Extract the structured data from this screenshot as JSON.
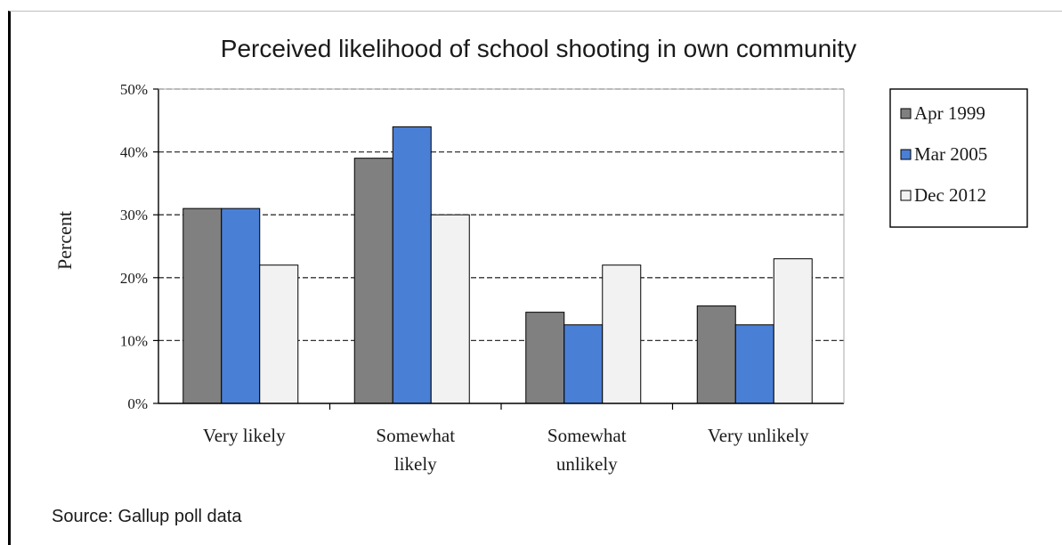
{
  "chart_data": {
    "type": "bar",
    "title": "Perceived likelihood of school shooting in own community",
    "xlabel": "",
    "ylabel": "Percent",
    "categories": [
      [
        "Very likely"
      ],
      [
        "Somewhat",
        "likely"
      ],
      [
        "Somewhat",
        "unlikely"
      ],
      [
        "Very unlikely"
      ]
    ],
    "series": [
      {
        "name": "Apr 1999",
        "color": "#808080",
        "values": [
          31,
          39,
          14.5,
          15.5
        ]
      },
      {
        "name": "Mar 2005",
        "color": "#4a7fd6",
        "values": [
          31,
          44,
          12.5,
          12.5
        ]
      },
      {
        "name": "Dec 2012",
        "color": "#f2f2f2",
        "values": [
          22,
          30,
          22,
          23
        ]
      }
    ],
    "yticks": [
      "0%",
      "10%",
      "20%",
      "30%",
      "40%",
      "50%"
    ],
    "ylim": [
      0,
      50
    ],
    "grid": "dashed horizontal",
    "legend_position": "right"
  },
  "source_note": "Source: Gallup poll data"
}
